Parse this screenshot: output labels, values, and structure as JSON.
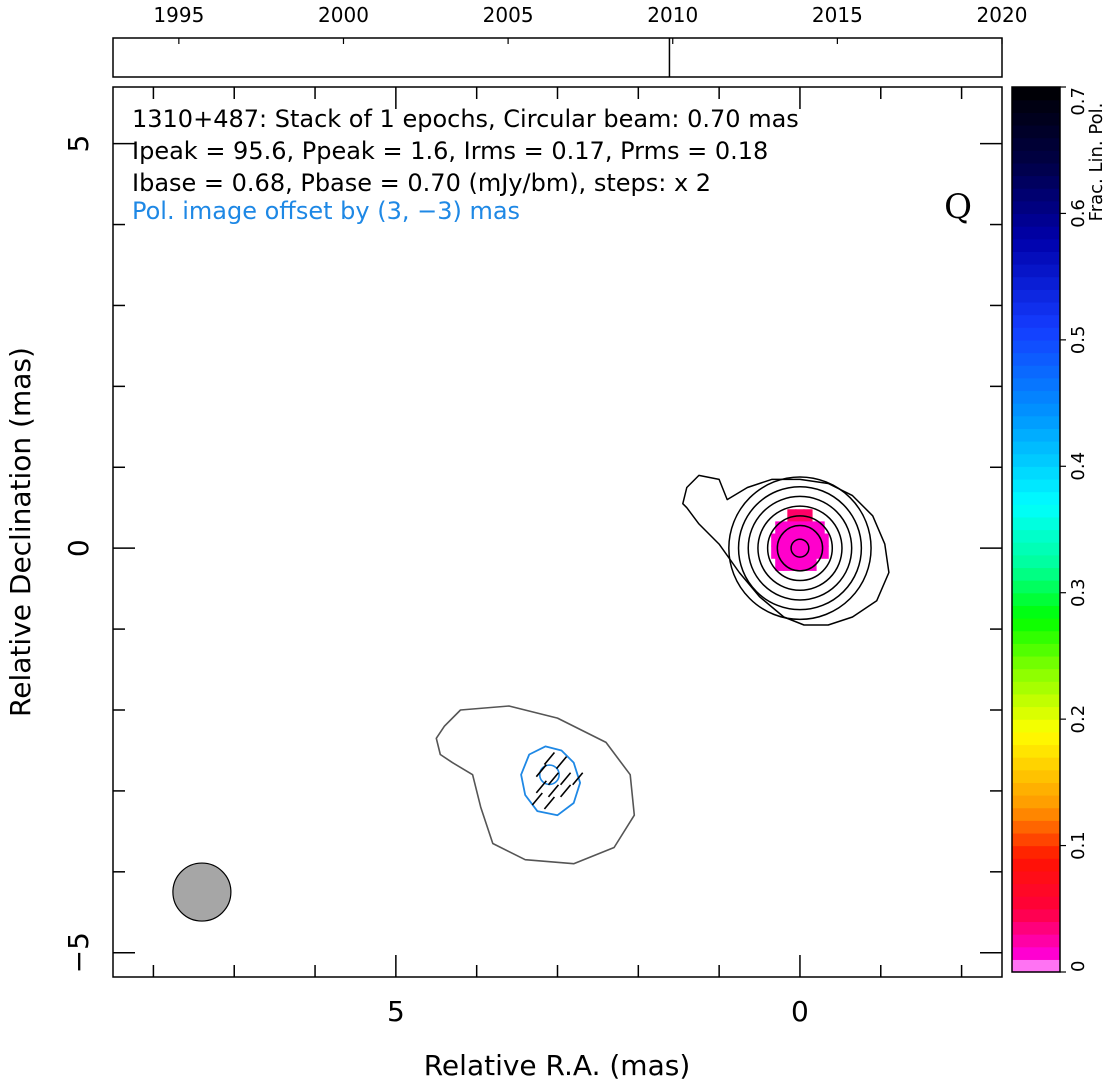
{
  "chart_data": {
    "type": "heatmap",
    "source_name": "1310+487",
    "annotation": {
      "line1": "1310+487: Stack of 1 epochs, Circular beam: 0.70 mas",
      "line2": "Ipeak = 95.6, Ppeak = 1.6, Irms = 0.17, Prms = 0.18",
      "line3": "Ibase = 0.68, Pbase = 0.70 (mJy/bm), steps: x 2",
      "offset_note": "Pol. image offset by (3, −3) mas",
      "offset_color": "#1e88e5",
      "quality_flag": "Q"
    },
    "xlabel": "Relative R.A. (mas)",
    "ylabel": "Relative Declination (mas)",
    "colorbar_label": "Frac. Lin. Pol.",
    "x_axis_reversed": true,
    "xlim": [
      8.5,
      -2.5
    ],
    "ylim": [
      -5.3,
      5.7
    ],
    "x_major_ticks": [
      5,
      0
    ],
    "x_tick_labels": [
      "5",
      "0"
    ],
    "y_major_ticks": [
      5,
      0,
      -5
    ],
    "y_tick_labels": [
      "5",
      "0",
      "−5"
    ],
    "colorbar_range": [
      0,
      0.7
    ],
    "colorbar_ticks": [
      "0",
      "0.1",
      "0.2",
      "0.3",
      "0.4",
      "0.5",
      "0.6",
      "0.7"
    ],
    "epoch_axis": {
      "range": [
        1993,
        2020
      ],
      "ticks": [
        "1995",
        "2000",
        "2005",
        "2010",
        "2015",
        "2020"
      ],
      "epochs": [
        2009.9
      ]
    },
    "beam": {
      "diameter_mas": 0.7,
      "center": [
        7.4,
        -4.25
      ],
      "fill": "#a6a6a6"
    },
    "stokes_I_contours": [
      {
        "x": [
          0.9,
          1.0,
          1.25,
          1.4,
          1.45,
          1.4,
          1.25,
          1.0,
          0.75,
          0.5,
          0.2,
          -0.05,
          -0.35,
          -0.65,
          -0.95,
          -1.1,
          -1.05,
          -0.9,
          -0.65,
          -0.35,
          0.0,
          0.35,
          0.65,
          0.9
        ],
        "y": [
          0.6,
          0.85,
          0.9,
          0.75,
          0.55,
          0.5,
          0.3,
          0.05,
          -0.3,
          -0.6,
          -0.85,
          -0.95,
          -0.95,
          -0.85,
          -0.65,
          -0.3,
          0.05,
          0.4,
          0.65,
          0.8,
          0.85,
          0.85,
          0.75,
          0.6
        ]
      },
      {
        "cx": 0.0,
        "cy": 0.0,
        "r": 0.88
      },
      {
        "cx": 0.0,
        "cy": 0.0,
        "r": 0.76
      },
      {
        "cx": 0.0,
        "cy": 0.0,
        "r": 0.64
      },
      {
        "cx": 0.0,
        "cy": 0.0,
        "r": 0.52
      },
      {
        "cx": 0.0,
        "cy": 0.0,
        "r": 0.4
      },
      {
        "cx": 0.0,
        "cy": 0.0,
        "r": 0.28
      },
      {
        "cx": 0.0,
        "cy": 0.0,
        "r": 0.11
      }
    ],
    "stokes_I_offset_contour": {
      "color": "#555555",
      "x": [
        4.2,
        3.6,
        3.0,
        2.4,
        2.1,
        2.05,
        2.3,
        2.8,
        3.4,
        3.8,
        3.95,
        4.05,
        4.3,
        4.45,
        4.5,
        4.4,
        4.2
      ],
      "y": [
        -2.0,
        -1.95,
        -2.1,
        -2.4,
        -2.8,
        -3.3,
        -3.7,
        -3.9,
        -3.85,
        -3.65,
        -3.2,
        -2.8,
        -2.65,
        -2.55,
        -2.35,
        -2.2,
        -2.0
      ]
    },
    "pol_contours": {
      "color": "#1e88e5",
      "outer": {
        "x": [
          3.35,
          3.15,
          2.95,
          2.8,
          2.72,
          2.8,
          3.0,
          3.25,
          3.4,
          3.45,
          3.35
        ],
        "y": [
          -2.55,
          -2.45,
          -2.5,
          -2.65,
          -2.9,
          -3.15,
          -3.3,
          -3.25,
          -3.05,
          -2.8,
          -2.55
        ]
      },
      "inner": {
        "cx": 3.1,
        "cy": -2.8,
        "r": 0.12
      }
    },
    "evpa_vectors": [
      {
        "x": 3.1,
        "y": -2.6
      },
      {
        "x": 2.95,
        "y": -2.65
      },
      {
        "x": 3.2,
        "y": -2.75
      },
      {
        "x": 3.05,
        "y": -2.85
      },
      {
        "x": 2.9,
        "y": -2.85
      },
      {
        "x": 2.75,
        "y": -2.85
      },
      {
        "x": 3.2,
        "y": -2.95
      },
      {
        "x": 3.05,
        "y": -3.0
      },
      {
        "x": 2.9,
        "y": -3.0
      },
      {
        "x": 3.25,
        "y": -3.1
      },
      {
        "x": 3.1,
        "y": -3.15
      }
    ],
    "frac_pol_pixels": [
      {
        "x": 0.1,
        "y": 0.4,
        "v": 0.04
      },
      {
        "x": 0.0,
        "y": 0.4,
        "v": 0.05
      },
      {
        "x": -0.1,
        "y": 0.4,
        "v": 0.04
      },
      {
        "x": 0.25,
        "y": 0.25,
        "v": 0.02
      },
      {
        "x": 0.15,
        "y": 0.25,
        "v": 0.02
      },
      {
        "x": 0.05,
        "y": 0.25,
        "v": 0.02
      },
      {
        "x": -0.05,
        "y": 0.25,
        "v": 0.02
      },
      {
        "x": -0.15,
        "y": 0.25,
        "v": 0.02
      },
      {
        "x": -0.25,
        "y": 0.25,
        "v": 0.02
      },
      {
        "x": 0.3,
        "y": 0.1,
        "v": 0.01
      },
      {
        "x": 0.2,
        "y": 0.1,
        "v": 0.01
      },
      {
        "x": 0.1,
        "y": 0.1,
        "v": 0.01
      },
      {
        "x": 0.0,
        "y": 0.1,
        "v": 0.01
      },
      {
        "x": -0.1,
        "y": 0.1,
        "v": 0.01
      },
      {
        "x": -0.2,
        "y": 0.1,
        "v": 0.01
      },
      {
        "x": -0.3,
        "y": 0.1,
        "v": 0.01
      },
      {
        "x": 0.3,
        "y": -0.05,
        "v": 0.01
      },
      {
        "x": 0.2,
        "y": -0.05,
        "v": 0.01
      },
      {
        "x": 0.1,
        "y": -0.05,
        "v": 0.01
      },
      {
        "x": 0.0,
        "y": -0.05,
        "v": 0.01
      },
      {
        "x": -0.1,
        "y": -0.05,
        "v": 0.01
      },
      {
        "x": -0.2,
        "y": -0.05,
        "v": 0.01
      },
      {
        "x": -0.3,
        "y": -0.05,
        "v": 0.01
      },
      {
        "x": 0.25,
        "y": -0.2,
        "v": 0.01
      },
      {
        "x": 0.15,
        "y": -0.2,
        "v": 0.01
      },
      {
        "x": 0.05,
        "y": -0.2,
        "v": 0.01
      },
      {
        "x": -0.05,
        "y": -0.2,
        "v": 0.01
      },
      {
        "x": -0.15,
        "y": -0.2,
        "v": 0.01
      }
    ]
  }
}
